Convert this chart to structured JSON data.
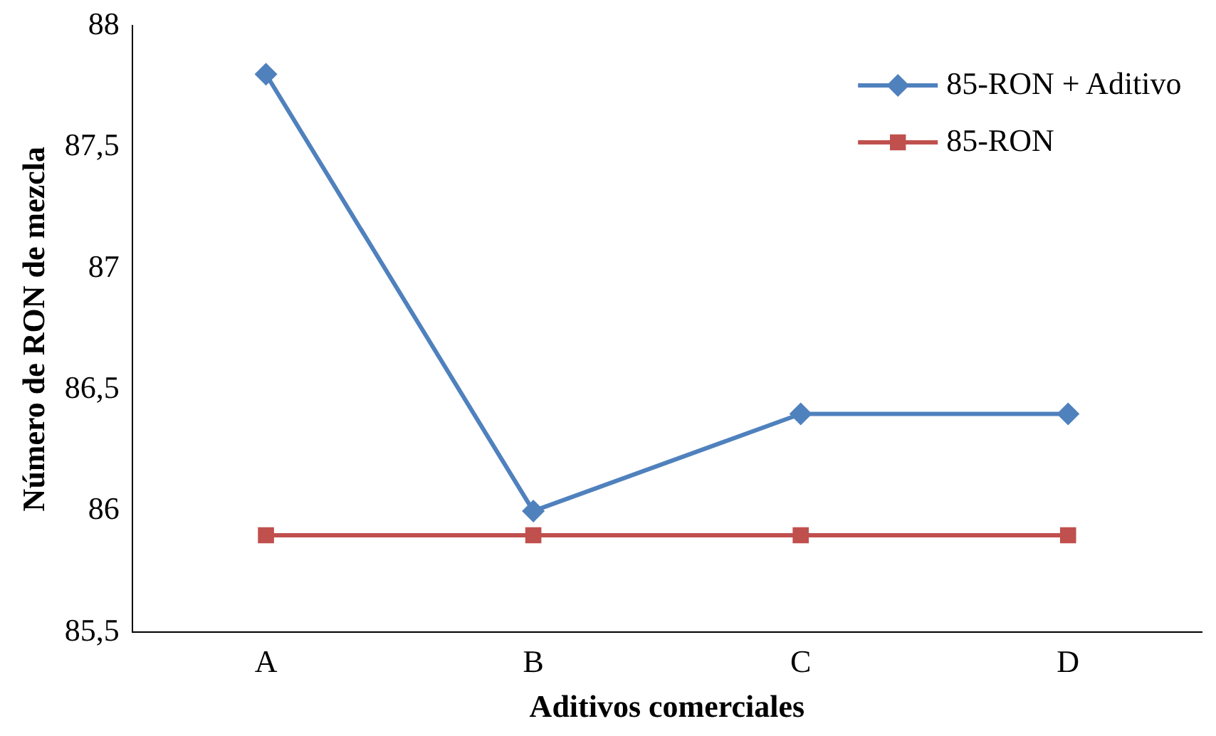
{
  "chart_data": {
    "type": "line",
    "xlabel": "Aditivos comerciales",
    "ylabel": "Número de RON de mezcla",
    "categories": [
      "A",
      "B",
      "C",
      "D"
    ],
    "series": [
      {
        "name": "85-RON + Aditivo",
        "color": "#4f81bd",
        "marker": "diamond",
        "values": [
          87.8,
          86.0,
          86.4,
          86.4
        ]
      },
      {
        "name": "85-RON",
        "color": "#c0504d",
        "marker": "square",
        "values": [
          85.9,
          85.9,
          85.9,
          85.9
        ]
      }
    ],
    "ylim": [
      85.5,
      88
    ],
    "yticks": [
      {
        "value": 85.5,
        "label": "85,5"
      },
      86,
      {
        "value": 86.5,
        "label": "86,5"
      },
      87,
      {
        "value": 87.5,
        "label": "87,5"
      },
      88
    ],
    "grid": false,
    "legend": "top right"
  }
}
